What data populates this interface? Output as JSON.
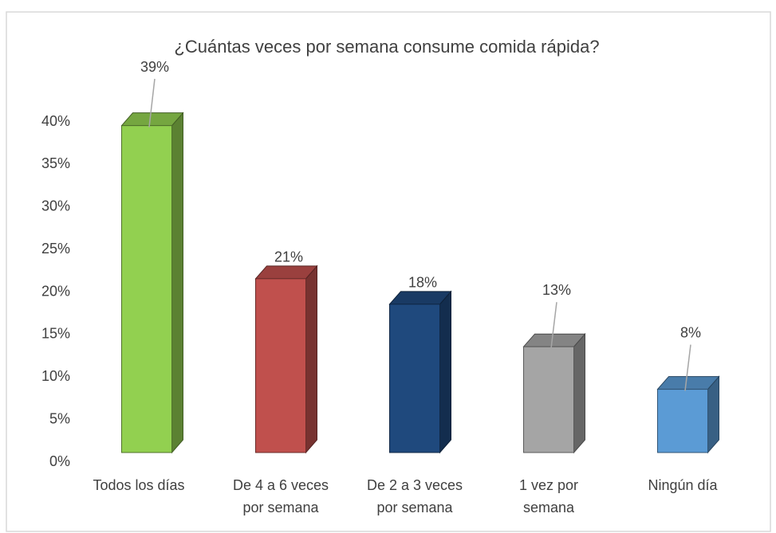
{
  "chart_data": {
    "type": "bar3d",
    "title": "¿Cuántas veces por semana consume comida rápida?",
    "categories": [
      [
        "Todos los días"
      ],
      [
        "De 4 a 6 veces",
        "por semana"
      ],
      [
        "De 2 a 3 veces",
        "por semana"
      ],
      [
        "1 vez por",
        "semana"
      ],
      [
        "Ningún día"
      ]
    ],
    "values": [
      39,
      21,
      18,
      13,
      8
    ],
    "value_labels": [
      "39%",
      "21%",
      "18%",
      "13%",
      "8%"
    ],
    "colors": [
      "#92d050",
      "#c0504d",
      "#1f497d",
      "#a5a5a5",
      "#5b9bd5"
    ],
    "ylim": [
      0,
      40
    ],
    "yticks": [
      {
        "value": 0,
        "label": "0%"
      },
      {
        "value": 5,
        "label": "5%"
      },
      {
        "value": 10,
        "label": "10%"
      },
      {
        "value": 15,
        "label": "15%"
      },
      {
        "value": 20,
        "label": "20%"
      },
      {
        "value": 25,
        "label": "25%"
      },
      {
        "value": 30,
        "label": "30%"
      },
      {
        "value": 35,
        "label": "35%"
      },
      {
        "value": 40,
        "label": "40%"
      }
    ],
    "grid": false
  }
}
